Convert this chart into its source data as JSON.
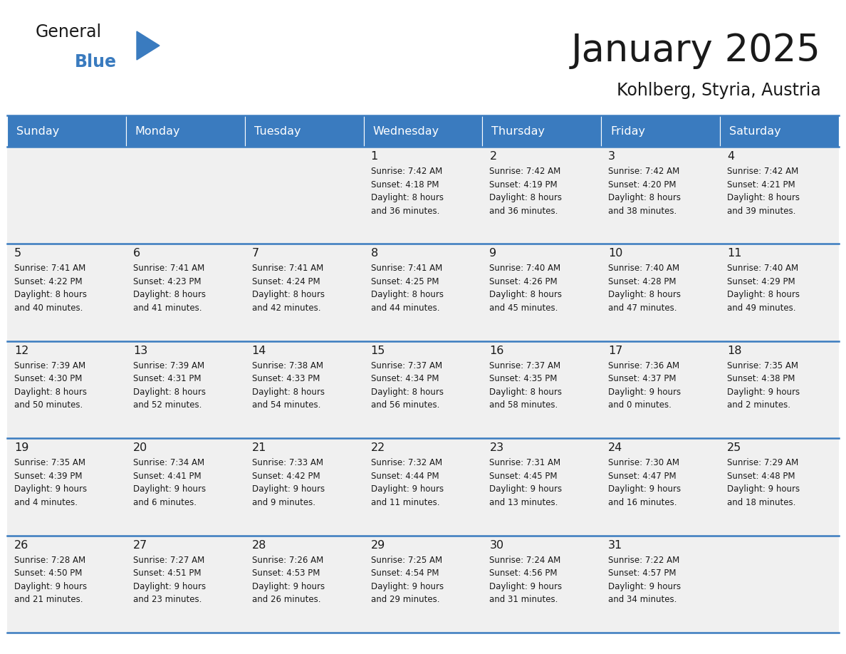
{
  "title": "January 2025",
  "subtitle": "Kohlberg, Styria, Austria",
  "header_color": "#3a7bbf",
  "header_text_color": "#ffffff",
  "cell_bg_color": "#f0f0f0",
  "border_color": "#3a7bbf",
  "days_of_week": [
    "Sunday",
    "Monday",
    "Tuesday",
    "Wednesday",
    "Thursday",
    "Friday",
    "Saturday"
  ],
  "weeks": [
    [
      {
        "day": "",
        "info": ""
      },
      {
        "day": "",
        "info": ""
      },
      {
        "day": "",
        "info": ""
      },
      {
        "day": "1",
        "info": "Sunrise: 7:42 AM\nSunset: 4:18 PM\nDaylight: 8 hours\nand 36 minutes."
      },
      {
        "day": "2",
        "info": "Sunrise: 7:42 AM\nSunset: 4:19 PM\nDaylight: 8 hours\nand 36 minutes."
      },
      {
        "day": "3",
        "info": "Sunrise: 7:42 AM\nSunset: 4:20 PM\nDaylight: 8 hours\nand 38 minutes."
      },
      {
        "day": "4",
        "info": "Sunrise: 7:42 AM\nSunset: 4:21 PM\nDaylight: 8 hours\nand 39 minutes."
      }
    ],
    [
      {
        "day": "5",
        "info": "Sunrise: 7:41 AM\nSunset: 4:22 PM\nDaylight: 8 hours\nand 40 minutes."
      },
      {
        "day": "6",
        "info": "Sunrise: 7:41 AM\nSunset: 4:23 PM\nDaylight: 8 hours\nand 41 minutes."
      },
      {
        "day": "7",
        "info": "Sunrise: 7:41 AM\nSunset: 4:24 PM\nDaylight: 8 hours\nand 42 minutes."
      },
      {
        "day": "8",
        "info": "Sunrise: 7:41 AM\nSunset: 4:25 PM\nDaylight: 8 hours\nand 44 minutes."
      },
      {
        "day": "9",
        "info": "Sunrise: 7:40 AM\nSunset: 4:26 PM\nDaylight: 8 hours\nand 45 minutes."
      },
      {
        "day": "10",
        "info": "Sunrise: 7:40 AM\nSunset: 4:28 PM\nDaylight: 8 hours\nand 47 minutes."
      },
      {
        "day": "11",
        "info": "Sunrise: 7:40 AM\nSunset: 4:29 PM\nDaylight: 8 hours\nand 49 minutes."
      }
    ],
    [
      {
        "day": "12",
        "info": "Sunrise: 7:39 AM\nSunset: 4:30 PM\nDaylight: 8 hours\nand 50 minutes."
      },
      {
        "day": "13",
        "info": "Sunrise: 7:39 AM\nSunset: 4:31 PM\nDaylight: 8 hours\nand 52 minutes."
      },
      {
        "day": "14",
        "info": "Sunrise: 7:38 AM\nSunset: 4:33 PM\nDaylight: 8 hours\nand 54 minutes."
      },
      {
        "day": "15",
        "info": "Sunrise: 7:37 AM\nSunset: 4:34 PM\nDaylight: 8 hours\nand 56 minutes."
      },
      {
        "day": "16",
        "info": "Sunrise: 7:37 AM\nSunset: 4:35 PM\nDaylight: 8 hours\nand 58 minutes."
      },
      {
        "day": "17",
        "info": "Sunrise: 7:36 AM\nSunset: 4:37 PM\nDaylight: 9 hours\nand 0 minutes."
      },
      {
        "day": "18",
        "info": "Sunrise: 7:35 AM\nSunset: 4:38 PM\nDaylight: 9 hours\nand 2 minutes."
      }
    ],
    [
      {
        "day": "19",
        "info": "Sunrise: 7:35 AM\nSunset: 4:39 PM\nDaylight: 9 hours\nand 4 minutes."
      },
      {
        "day": "20",
        "info": "Sunrise: 7:34 AM\nSunset: 4:41 PM\nDaylight: 9 hours\nand 6 minutes."
      },
      {
        "day": "21",
        "info": "Sunrise: 7:33 AM\nSunset: 4:42 PM\nDaylight: 9 hours\nand 9 minutes."
      },
      {
        "day": "22",
        "info": "Sunrise: 7:32 AM\nSunset: 4:44 PM\nDaylight: 9 hours\nand 11 minutes."
      },
      {
        "day": "23",
        "info": "Sunrise: 7:31 AM\nSunset: 4:45 PM\nDaylight: 9 hours\nand 13 minutes."
      },
      {
        "day": "24",
        "info": "Sunrise: 7:30 AM\nSunset: 4:47 PM\nDaylight: 9 hours\nand 16 minutes."
      },
      {
        "day": "25",
        "info": "Sunrise: 7:29 AM\nSunset: 4:48 PM\nDaylight: 9 hours\nand 18 minutes."
      }
    ],
    [
      {
        "day": "26",
        "info": "Sunrise: 7:28 AM\nSunset: 4:50 PM\nDaylight: 9 hours\nand 21 minutes."
      },
      {
        "day": "27",
        "info": "Sunrise: 7:27 AM\nSunset: 4:51 PM\nDaylight: 9 hours\nand 23 minutes."
      },
      {
        "day": "28",
        "info": "Sunrise: 7:26 AM\nSunset: 4:53 PM\nDaylight: 9 hours\nand 26 minutes."
      },
      {
        "day": "29",
        "info": "Sunrise: 7:25 AM\nSunset: 4:54 PM\nDaylight: 9 hours\nand 29 minutes."
      },
      {
        "day": "30",
        "info": "Sunrise: 7:24 AM\nSunset: 4:56 PM\nDaylight: 9 hours\nand 31 minutes."
      },
      {
        "day": "31",
        "info": "Sunrise: 7:22 AM\nSunset: 4:57 PM\nDaylight: 9 hours\nand 34 minutes."
      },
      {
        "day": "",
        "info": ""
      }
    ]
  ],
  "logo_text_general": "General",
  "logo_text_blue": "Blue",
  "logo_color_general": "#1a1a1a",
  "logo_color_blue": "#3a7bbf",
  "logo_triangle_color": "#3a7bbf",
  "fig_width": 11.88,
  "fig_height": 9.18,
  "dpi": 100
}
